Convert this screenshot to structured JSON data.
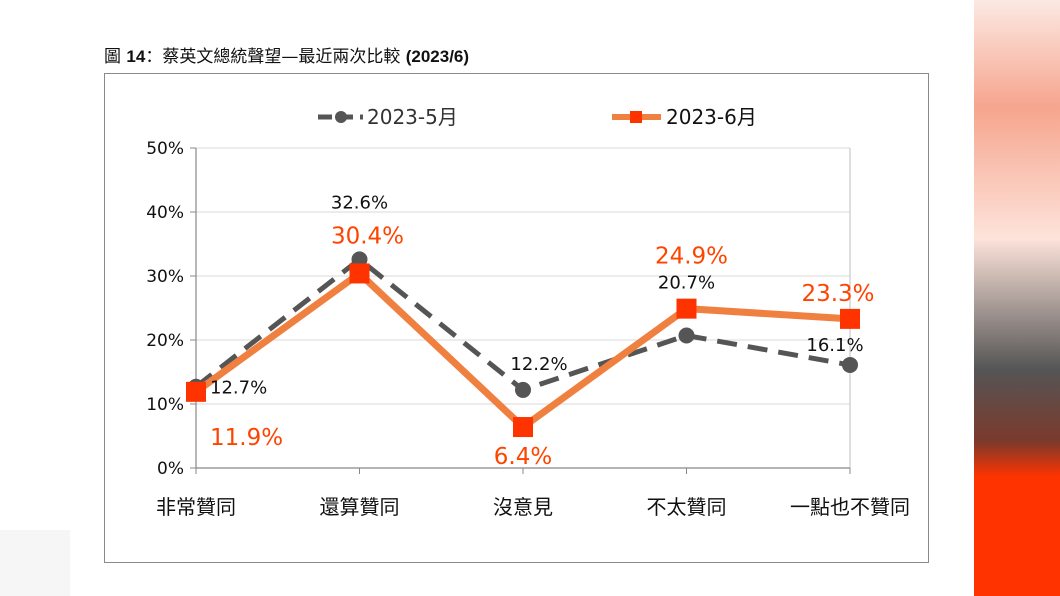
{
  "figure_title": {
    "prefix": "圖 ",
    "number": "14",
    "text": "：蔡英文總統聲望—最近兩次比較",
    "date": "(2023/6)"
  },
  "colors": {
    "series_may": "#555555",
    "series_june": "#f08040",
    "marker_june": "#ff3300",
    "label_may": "#111111",
    "label_june": "#ff4400"
  },
  "chart_data": {
    "type": "line",
    "title": "",
    "xlabel": "",
    "ylabel": "",
    "categories": [
      "非常贊同",
      "還算贊同",
      "沒意見",
      "不太贊同",
      "一點也不贊同"
    ],
    "ylim": [
      0,
      50
    ],
    "yticks": [
      "0%",
      "10%",
      "20%",
      "30%",
      "40%",
      "50%"
    ],
    "grid": true,
    "legend": "top",
    "series": [
      {
        "name": "2023-5月",
        "values": [
          12.7,
          32.6,
          12.2,
          20.7,
          16.1
        ],
        "labels": [
          "12.7%",
          "32.6%",
          "12.2%",
          "20.7%",
          "16.1%"
        ],
        "style": "dashed",
        "marker": "circle"
      },
      {
        "name": "2023-6月",
        "values": [
          11.9,
          30.4,
          6.4,
          24.9,
          23.3
        ],
        "labels": [
          "11.9%",
          "30.4%",
          "6.4%",
          "24.9%",
          "23.3%"
        ],
        "style": "solid",
        "marker": "square"
      }
    ]
  }
}
